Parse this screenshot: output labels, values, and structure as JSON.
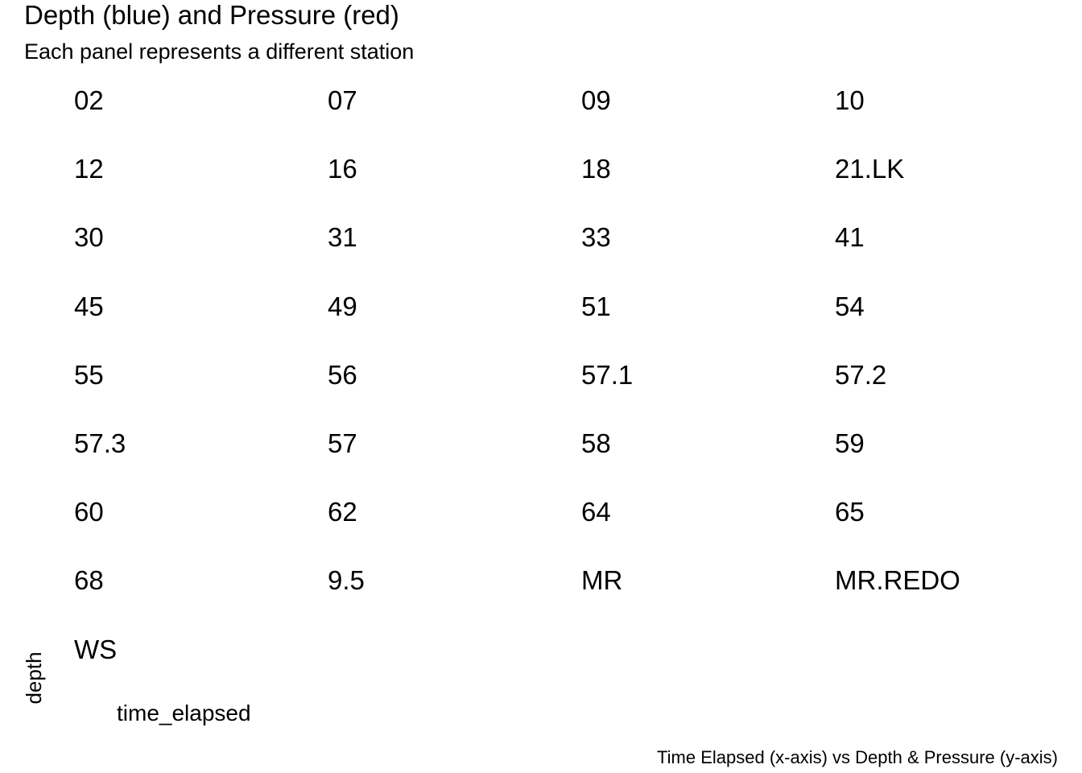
{
  "chart_data": {
    "type": "line",
    "title": "Depth (blue) and Pressure (red)",
    "subtitle": "Each panel represents a different station",
    "xlabel": "time_elapsed",
    "ylabel": "depth",
    "caption": "Time Elapsed (x-axis) vs Depth & Pressure (y-axis)",
    "series_colors": {
      "depth": "#0000ff",
      "pressure": "#ff0000"
    },
    "facets": [
      "02",
      "07",
      "09",
      "10",
      "12",
      "16",
      "18",
      "21.LK",
      "30",
      "31",
      "33",
      "41",
      "45",
      "49",
      "51",
      "54",
      "55",
      "56",
      "57.1",
      "57.2",
      "57.3",
      "57",
      "58",
      "59",
      "60",
      "62",
      "64",
      "65",
      "68",
      "9.5",
      "MR",
      "MR.REDO",
      "WS"
    ],
    "facet_columns": 4
  }
}
